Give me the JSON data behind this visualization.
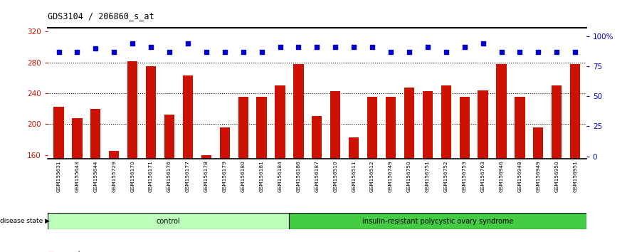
{
  "title": "GDS3104 / 206860_s_at",
  "samples": [
    "GSM155631",
    "GSM155643",
    "GSM155644",
    "GSM155729",
    "GSM156170",
    "GSM156171",
    "GSM156176",
    "GSM156177",
    "GSM156178",
    "GSM156179",
    "GSM156180",
    "GSM156181",
    "GSM156184",
    "GSM156186",
    "GSM156187",
    "GSM156510",
    "GSM156511",
    "GSM156512",
    "GSM156749",
    "GSM156750",
    "GSM156751",
    "GSM156752",
    "GSM156753",
    "GSM156763",
    "GSM156946",
    "GSM156948",
    "GSM156949",
    "GSM156950",
    "GSM156951"
  ],
  "bar_values": [
    222,
    208,
    220,
    165,
    282,
    275,
    212,
    263,
    160,
    196,
    235,
    235,
    250,
    278,
    210,
    243,
    183,
    235,
    235,
    247,
    243,
    250,
    235,
    244,
    278,
    235,
    196,
    250,
    278
  ],
  "percentile_values": [
    87,
    87,
    90,
    87,
    94,
    91,
    87,
    94,
    87,
    87,
    87,
    87,
    91,
    91,
    91,
    91,
    91,
    91,
    87,
    87,
    91,
    87,
    91,
    94,
    87,
    87,
    87,
    87,
    87
  ],
  "group_labels": [
    "control",
    "insulin-resistant polycystic ovary syndrome"
  ],
  "group_sizes": [
    13,
    16
  ],
  "group_color_light": "#bbffbb",
  "group_color_dark": "#44cc44",
  "bar_color": "#cc1100",
  "dot_color": "#0000cc",
  "ylim_left": [
    155,
    325
  ],
  "yticks_left": [
    160,
    200,
    240,
    280,
    320
  ],
  "ylim_right": [
    -2,
    107
  ],
  "yticks_right": [
    0,
    25,
    50,
    75,
    100
  ],
  "ytick_labels_right": [
    "0",
    "25",
    "50",
    "75",
    "100%"
  ],
  "grid_values": [
    200,
    240,
    280
  ],
  "bg_color": "#ffffff"
}
